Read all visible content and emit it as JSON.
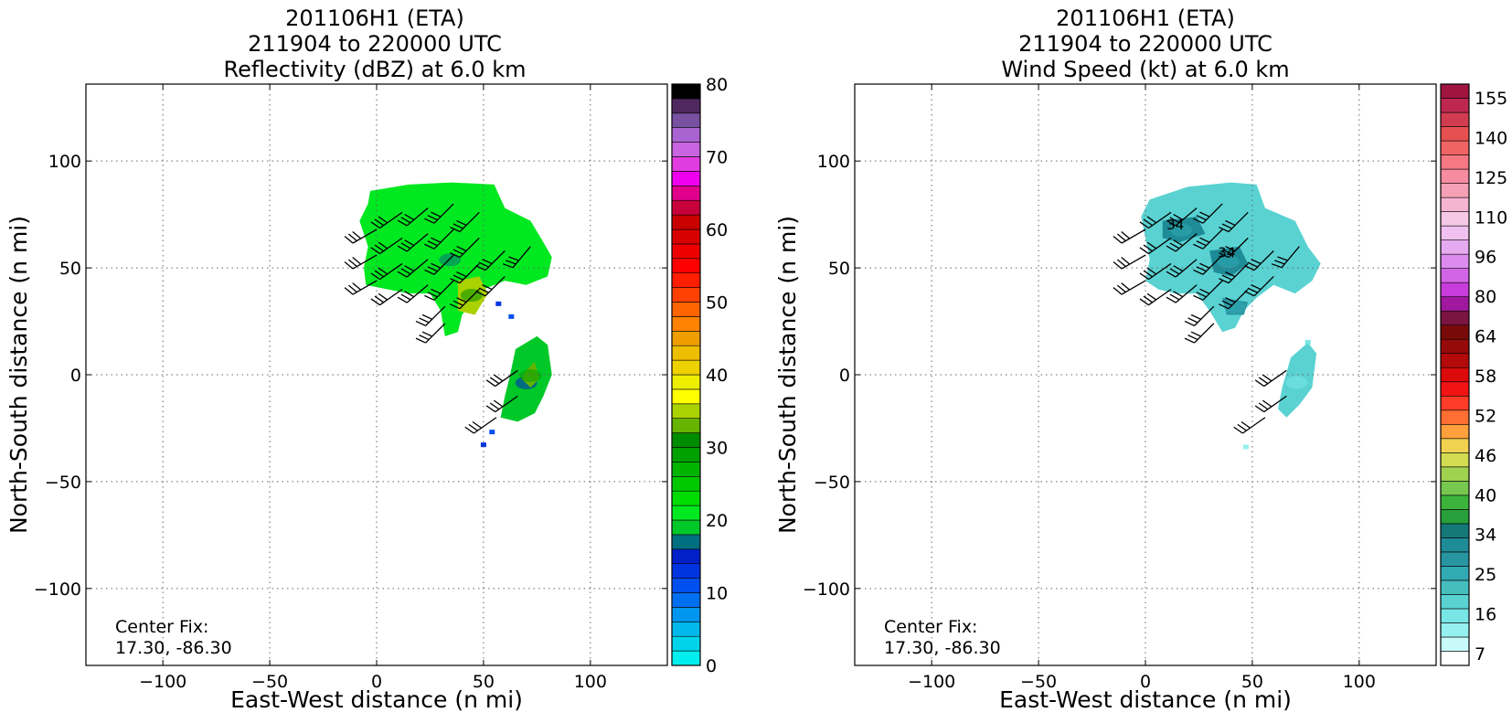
{
  "chart_data": [
    {
      "type": "heatmap",
      "title": [
        "201106H1 (ETA)",
        "211904 to 220000 UTC",
        "Reflectivity (dBZ) at 6.0 km"
      ],
      "xlabel": "East-West distance (n mi)",
      "ylabel": "North-South distance (n mi)",
      "xlim": [
        -136,
        136
      ],
      "ylim": [
        -136,
        136
      ],
      "xticks": [
        -100,
        -50,
        0,
        50,
        100
      ],
      "yticks": [
        -100,
        -50,
        0,
        50,
        100
      ],
      "grid": true,
      "annotation": [
        "Center Fix:",
        "17.30, -86.30"
      ],
      "colorbar": {
        "min": 0,
        "max": 80,
        "ticks": [
          0,
          10,
          20,
          30,
          40,
          50,
          60,
          70,
          80
        ],
        "colors": [
          "#00eeee",
          "#00d4ea",
          "#00b8ec",
          "#0096f0",
          "#0070f0",
          "#0050f0",
          "#0034e0",
          "#0020c8",
          "#007080",
          "#00c828",
          "#00e820",
          "#00dc00",
          "#00c800",
          "#00b400",
          "#00a000",
          "#008c00",
          "#66b400",
          "#aad200",
          "#ffff00",
          "#eeee00",
          "#eed200",
          "#eebe00",
          "#ee9e00",
          "#ff8200",
          "#ff6400",
          "#ff4000",
          "#ff1e00",
          "#ff0000",
          "#ee0000",
          "#d80000",
          "#c80000",
          "#c8003c",
          "#e0008c",
          "#ee00ee",
          "#e03ce0",
          "#c864e0",
          "#aa64d2",
          "#7850a0",
          "#502860",
          "#000000"
        ]
      },
      "field": {
        "regions": [
          {
            "desc": "main echo",
            "poly": [
              [
                -3,
                86
              ],
              [
                15,
                89
              ],
              [
                35,
                90
              ],
              [
                55,
                89
              ],
              [
                60,
                78
              ],
              [
                72,
                72
              ],
              [
                78,
                62
              ],
              [
                82,
                55
              ],
              [
                80,
                46
              ],
              [
                70,
                42
              ],
              [
                60,
                44
              ],
              [
                50,
                40
              ],
              [
                45,
                35
              ],
              [
                40,
                28
              ],
              [
                38,
                20
              ],
              [
                32,
                18
              ],
              [
                30,
                30
              ],
              [
                25,
                38
              ],
              [
                15,
                38
              ],
              [
                5,
                40
              ],
              [
                -5,
                42
              ],
              [
                -6,
                50
              ],
              [
                -4,
                60
              ],
              [
                -8,
                72
              ],
              [
                -4,
                80
              ]
            ],
            "value": 20
          },
          {
            "desc": "southern echo",
            "poly": [
              [
                65,
                12
              ],
              [
                75,
                18
              ],
              [
                80,
                14
              ],
              [
                82,
                0
              ],
              [
                78,
                -10
              ],
              [
                74,
                -18
              ],
              [
                66,
                -22
              ],
              [
                58,
                -20
              ],
              [
                60,
                -10
              ],
              [
                62,
                -2
              ]
            ],
            "value": 18
          },
          {
            "desc": "core",
            "poly": [
              [
                38,
                44
              ],
              [
                48,
                46
              ],
              [
                52,
                38
              ],
              [
                46,
                28
              ],
              [
                38,
                30
              ]
            ],
            "value": 34
          },
          {
            "desc": "core2",
            "poly": [
              [
                70,
                2
              ],
              [
                74,
                6
              ],
              [
                76,
                -2
              ],
              [
                72,
                -6
              ],
              [
                68,
                -2
              ]
            ],
            "value": 32
          }
        ],
        "speckles": [
          [
            50,
            -33,
            12
          ],
          [
            54,
            -27,
            10
          ],
          [
            57,
            33,
            12
          ],
          [
            63,
            27,
            10
          ]
        ]
      },
      "wind_barbs": [
        {
          "x": 0,
          "y": 68,
          "dir": 240,
          "speed": 30
        },
        {
          "x": 0,
          "y": 56,
          "dir": 240,
          "speed": 30
        },
        {
          "x": 0,
          "y": 44,
          "dir": 240,
          "speed": 30
        },
        {
          "x": 12,
          "y": 76,
          "dir": 235,
          "speed": 30
        },
        {
          "x": 12,
          "y": 64,
          "dir": 235,
          "speed": 30
        },
        {
          "x": 12,
          "y": 52,
          "dir": 235,
          "speed": 30
        },
        {
          "x": 12,
          "y": 40,
          "dir": 235,
          "speed": 30
        },
        {
          "x": 24,
          "y": 78,
          "dir": 230,
          "speed": 30
        },
        {
          "x": 24,
          "y": 66,
          "dir": 230,
          "speed": 30
        },
        {
          "x": 24,
          "y": 54,
          "dir": 230,
          "speed": 30
        },
        {
          "x": 24,
          "y": 42,
          "dir": 230,
          "speed": 30
        },
        {
          "x": 36,
          "y": 80,
          "dir": 225,
          "speed": 30
        },
        {
          "x": 36,
          "y": 68,
          "dir": 225,
          "speed": 30
        },
        {
          "x": 36,
          "y": 56,
          "dir": 225,
          "speed": 30
        },
        {
          "x": 36,
          "y": 44,
          "dir": 225,
          "speed": 30
        },
        {
          "x": 32,
          "y": 32,
          "dir": 225,
          "speed": 30
        },
        {
          "x": 32,
          "y": 24,
          "dir": 225,
          "speed": 30
        },
        {
          "x": 48,
          "y": 76,
          "dir": 225,
          "speed": 30
        },
        {
          "x": 48,
          "y": 64,
          "dir": 225,
          "speed": 30
        },
        {
          "x": 48,
          "y": 52,
          "dir": 225,
          "speed": 30
        },
        {
          "x": 48,
          "y": 40,
          "dir": 225,
          "speed": 30
        },
        {
          "x": 60,
          "y": 58,
          "dir": 225,
          "speed": 30
        },
        {
          "x": 60,
          "y": 46,
          "dir": 225,
          "speed": 30
        },
        {
          "x": 72,
          "y": 60,
          "dir": 220,
          "speed": 30
        },
        {
          "x": 66,
          "y": 2,
          "dir": 235,
          "speed": 30
        },
        {
          "x": 66,
          "y": -10,
          "dir": 235,
          "speed": 30
        },
        {
          "x": 56,
          "y": -20,
          "dir": 235,
          "speed": 30
        }
      ]
    },
    {
      "type": "heatmap",
      "title": [
        "201106H1 (ETA)",
        "211904 to 220000 UTC",
        "Wind Speed (kt) at 6.0 km"
      ],
      "xlabel": "East-West distance (n mi)",
      "ylabel": "North-South distance (n mi)",
      "xlim": [
        -136,
        136
      ],
      "ylim": [
        -136,
        136
      ],
      "xticks": [
        -100,
        -50,
        0,
        50,
        100
      ],
      "yticks": [
        -100,
        -50,
        0,
        50,
        100
      ],
      "grid": true,
      "annotation": [
        "Center Fix:",
        "17.30, -86.30"
      ],
      "contour_labels": [
        {
          "x": 14,
          "y": 68,
          "text": "34"
        },
        {
          "x": 38,
          "y": 55,
          "text": "34"
        }
      ],
      "colorbar": {
        "ticks": [
          7,
          16,
          25,
          34,
          40,
          46,
          52,
          58,
          64,
          80,
          96,
          110,
          125,
          140,
          155
        ],
        "colors": [
          "#ffffff",
          "#c8fafa",
          "#96f0f0",
          "#78e6e6",
          "#5ad2d2",
          "#46bebe",
          "#32aab4",
          "#2896a0",
          "#1e8c96",
          "#147878",
          "#28a03c",
          "#3cb43c",
          "#78c850",
          "#a0d250",
          "#d2dc50",
          "#f0d250",
          "#ffa03c",
          "#ff6e32",
          "#ff3c28",
          "#f01414",
          "#dc0a0a",
          "#b40a0a",
          "#960a0a",
          "#780a0a",
          "#7a1440",
          "#a0189e",
          "#c83cdc",
          "#d264e6",
          "#dc8cee",
          "#e6aaf0",
          "#f0c0f0",
          "#f5c8e6",
          "#f5b4d2",
          "#f5a0b4",
          "#f58ca0",
          "#f57882",
          "#f06464",
          "#e65050",
          "#d23c50",
          "#be2850",
          "#a01440"
        ]
      },
      "field": {
        "regions": [
          {
            "desc": "main echo",
            "poly": [
              [
                2,
                82
              ],
              [
                20,
                88
              ],
              [
                40,
                90
              ],
              [
                52,
                89
              ],
              [
                56,
                78
              ],
              [
                70,
                72
              ],
              [
                76,
                60
              ],
              [
                82,
                52
              ],
              [
                78,
                44
              ],
              [
                70,
                38
              ],
              [
                60,
                42
              ],
              [
                52,
                36
              ],
              [
                46,
                30
              ],
              [
                42,
                22
              ],
              [
                36,
                20
              ],
              [
                30,
                30
              ],
              [
                24,
                38
              ],
              [
                14,
                38
              ],
              [
                6,
                40
              ],
              [
                0,
                44
              ],
              [
                2,
                54
              ],
              [
                0,
                64
              ],
              [
                -2,
                74
              ]
            ],
            "value": 22
          },
          {
            "desc": "southern echo",
            "poly": [
              [
                68,
                8
              ],
              [
                76,
                15
              ],
              [
                80,
                10
              ],
              [
                78,
                -6
              ],
              [
                72,
                -14
              ],
              [
                66,
                -20
              ],
              [
                62,
                -16
              ],
              [
                64,
                -6
              ]
            ],
            "value": 24
          },
          {
            "desc": "34kt area",
            "poly": [
              [
                8,
                72
              ],
              [
                24,
                74
              ],
              [
                28,
                66
              ],
              [
                16,
                62
              ],
              [
                8,
                64
              ]
            ],
            "value": 36
          },
          {
            "desc": "34kt area2",
            "poly": [
              [
                30,
                58
              ],
              [
                44,
                60
              ],
              [
                48,
                52
              ],
              [
                40,
                46
              ],
              [
                32,
                48
              ]
            ],
            "value": 36
          },
          {
            "desc": "34kt area3",
            "poly": [
              [
                36,
                36
              ],
              [
                48,
                34
              ],
              [
                46,
                28
              ],
              [
                38,
                28
              ]
            ],
            "value": 35
          }
        ],
        "speckles": [
          [
            47,
            -34,
            16
          ],
          [
            76,
            15,
            18
          ]
        ]
      },
      "wind_barbs": [
        {
          "x": 0,
          "y": 68,
          "dir": 240,
          "speed": 30
        },
        {
          "x": 0,
          "y": 56,
          "dir": 240,
          "speed": 30
        },
        {
          "x": 0,
          "y": 44,
          "dir": 240,
          "speed": 30
        },
        {
          "x": 12,
          "y": 76,
          "dir": 235,
          "speed": 30
        },
        {
          "x": 12,
          "y": 64,
          "dir": 235,
          "speed": 30
        },
        {
          "x": 12,
          "y": 52,
          "dir": 235,
          "speed": 30
        },
        {
          "x": 12,
          "y": 40,
          "dir": 235,
          "speed": 30
        },
        {
          "x": 24,
          "y": 78,
          "dir": 230,
          "speed": 30
        },
        {
          "x": 24,
          "y": 66,
          "dir": 230,
          "speed": 30
        },
        {
          "x": 24,
          "y": 54,
          "dir": 230,
          "speed": 30
        },
        {
          "x": 24,
          "y": 42,
          "dir": 230,
          "speed": 30
        },
        {
          "x": 36,
          "y": 80,
          "dir": 225,
          "speed": 30
        },
        {
          "x": 36,
          "y": 68,
          "dir": 225,
          "speed": 30
        },
        {
          "x": 36,
          "y": 56,
          "dir": 225,
          "speed": 30
        },
        {
          "x": 36,
          "y": 44,
          "dir": 225,
          "speed": 30
        },
        {
          "x": 32,
          "y": 32,
          "dir": 225,
          "speed": 30
        },
        {
          "x": 32,
          "y": 24,
          "dir": 225,
          "speed": 30
        },
        {
          "x": 48,
          "y": 76,
          "dir": 225,
          "speed": 30
        },
        {
          "x": 48,
          "y": 64,
          "dir": 225,
          "speed": 30
        },
        {
          "x": 48,
          "y": 52,
          "dir": 225,
          "speed": 30
        },
        {
          "x": 48,
          "y": 40,
          "dir": 225,
          "speed": 30
        },
        {
          "x": 60,
          "y": 58,
          "dir": 225,
          "speed": 30
        },
        {
          "x": 60,
          "y": 46,
          "dir": 225,
          "speed": 30
        },
        {
          "x": 72,
          "y": 60,
          "dir": 220,
          "speed": 30
        },
        {
          "x": 66,
          "y": 2,
          "dir": 235,
          "speed": 30
        },
        {
          "x": 66,
          "y": -10,
          "dir": 235,
          "speed": 30
        },
        {
          "x": 56,
          "y": -20,
          "dir": 235,
          "speed": 30
        }
      ]
    }
  ]
}
